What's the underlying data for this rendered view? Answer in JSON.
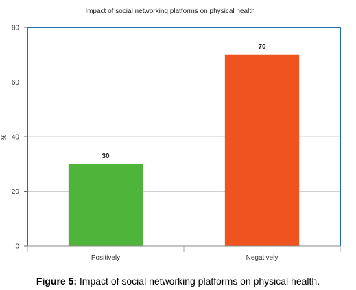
{
  "chart_data": {
    "type": "bar",
    "title": "Impact of social networking platforms on physical health",
    "ylabel": "%",
    "xlabel": "",
    "categories": [
      "Positively",
      "Negatively"
    ],
    "values": [
      30,
      70
    ],
    "data_labels": [
      "30",
      "70"
    ],
    "ylim": [
      0,
      80
    ],
    "yticks": [
      0,
      20,
      40,
      60,
      80
    ],
    "ytick_labels": [
      "0",
      "20",
      "40",
      "60",
      "80"
    ],
    "grid": true,
    "bar_colors": [
      "#4fb53a",
      "#f0541e"
    ],
    "frame_color": "#1f6fb8"
  },
  "caption": {
    "prefix": "Figure 5:",
    "text": "Impact of social networking platforms on physical health."
  }
}
